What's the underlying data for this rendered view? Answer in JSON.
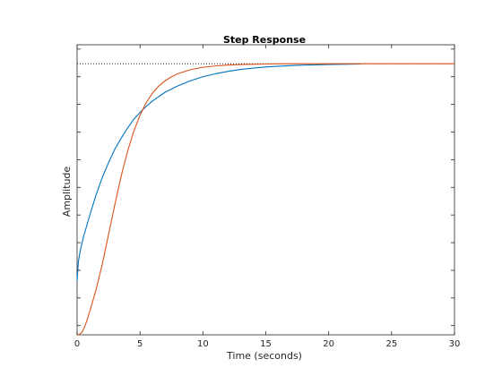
{
  "chart_data": {
    "type": "line",
    "title": "Step Response",
    "xlabel": "Time (seconds)",
    "ylabel": "Amplitude",
    "xlim": [
      0,
      30
    ],
    "ylim": [
      0,
      1.07
    ],
    "x_ticks": [
      0,
      5,
      10,
      15,
      20,
      25,
      30
    ],
    "y_tick_values": [
      0.034,
      0.136,
      0.238,
      0.34,
      0.442,
      0.544,
      0.646,
      0.748,
      0.85,
      0.952,
      1.054
    ],
    "y_tick_labels_shown": false,
    "grid": false,
    "legend": "none",
    "steady_state_line": {
      "y": 1.0,
      "style": "dotted",
      "color": "#000000"
    },
    "series": [
      {
        "color": "#0072bd",
        "x": [
          0,
          0.1,
          0.25,
          0.5,
          1,
          1.5,
          2,
          2.5,
          3,
          3.5,
          4,
          4.5,
          5,
          5.5,
          6,
          7,
          8,
          9,
          10,
          11,
          12,
          13,
          14,
          15,
          16,
          17,
          18,
          19,
          20,
          21,
          22.6
        ],
        "y": [
          0.2,
          0.27,
          0.31,
          0.36,
          0.44,
          0.515,
          0.58,
          0.635,
          0.685,
          0.725,
          0.762,
          0.795,
          0.82,
          0.843,
          0.863,
          0.895,
          0.918,
          0.937,
          0.952,
          0.963,
          0.972,
          0.979,
          0.984,
          0.988,
          0.991,
          0.993,
          0.995,
          0.996,
          0.997,
          0.998,
          0.999
        ]
      },
      {
        "color": "#d95319",
        "x": [
          0,
          0.2,
          0.4,
          0.6,
          0.8,
          1,
          1.5,
          2,
          2.5,
          3,
          3.5,
          4,
          4.5,
          5,
          5.5,
          6,
          6.5,
          7,
          7.5,
          8,
          9,
          10,
          11,
          12,
          13,
          14,
          15,
          16,
          17.5,
          20,
          30
        ],
        "y": [
          0,
          0.002,
          0.01,
          0.03,
          0.055,
          0.085,
          0.165,
          0.26,
          0.37,
          0.48,
          0.585,
          0.675,
          0.75,
          0.81,
          0.857,
          0.892,
          0.918,
          0.937,
          0.952,
          0.963,
          0.978,
          0.987,
          0.992,
          0.995,
          0.997,
          0.998,
          0.999,
          0.9995,
          1.0,
          1.0,
          1.0
        ]
      }
    ]
  },
  "colors": {
    "axes": "#262626",
    "ticks": "#262626",
    "background": "#ffffff"
  }
}
